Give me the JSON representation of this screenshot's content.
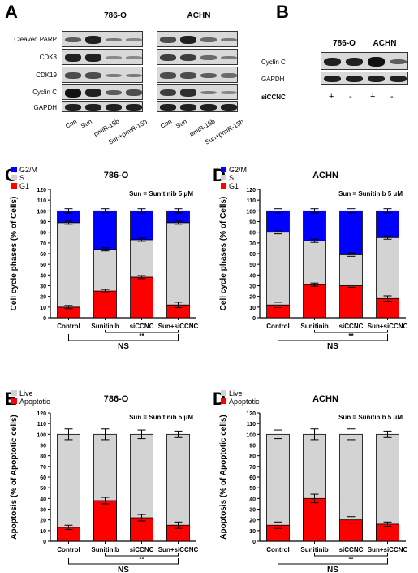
{
  "panelA": {
    "letter": "A",
    "groups": [
      "786-O",
      "ACHN"
    ],
    "rows": [
      "Cleaved PARP",
      "CDK8",
      "CDK19",
      "Cyclin C",
      "GAPDH"
    ],
    "lanes": [
      "Con",
      "Sun",
      "pmiR-15b",
      "Sun+pmiR-15b"
    ]
  },
  "panelB": {
    "letter": "B",
    "groups": [
      "786-O",
      "ACHN"
    ],
    "rows": [
      "Cyclin C",
      "GAPDH"
    ],
    "treatment_label": "siCCNC",
    "signs": [
      "+",
      "-",
      "+",
      "-"
    ]
  },
  "chart_data": [
    {
      "letter": "C",
      "type": "bar",
      "stacked": true,
      "title": "786-O",
      "annotation": "Sun = Sunitinib 5 μM",
      "ylabel": "Cell cycle phases (% of Cells)",
      "ylim": [
        0,
        120
      ],
      "yticks": [
        0,
        10,
        20,
        30,
        40,
        50,
        60,
        70,
        80,
        90,
        100,
        110,
        120
      ],
      "categories": [
        "Control",
        "Sunitinib",
        "siCCNC",
        "Sun+siCCNC"
      ],
      "legend": "top-left",
      "series": [
        {
          "name": "G1",
          "color": "#ff0000",
          "values": [
            10,
            25,
            38,
            12
          ],
          "errors": [
            1.5,
            1.5,
            1.5,
            2.5
          ]
        },
        {
          "name": "S",
          "color": "#d3d3d3",
          "values": [
            79,
            39,
            35,
            77
          ],
          "errors": [
            1.5,
            1.5,
            1.5,
            1.5
          ]
        },
        {
          "name": "G2/M",
          "color": "#0000ff",
          "values": [
            11,
            36,
            27,
            11
          ],
          "errors": [
            2,
            2,
            2,
            2
          ]
        }
      ],
      "brackets": [
        {
          "from": 1,
          "to": 3,
          "label": "**"
        },
        {
          "from": 0,
          "to": 3,
          "label": "NS"
        }
      ]
    },
    {
      "letter": "D",
      "type": "bar",
      "stacked": true,
      "title": "ACHN",
      "annotation": "Sun = Sunitinib 5 μM",
      "ylabel": "Cell cycle phases (% of Cells)",
      "ylim": [
        0,
        120
      ],
      "yticks": [
        0,
        10,
        20,
        30,
        40,
        50,
        60,
        70,
        80,
        90,
        100,
        110,
        120
      ],
      "categories": [
        "Control",
        "Sunitinib",
        "siCCNC",
        "Sun+siCCNC"
      ],
      "legend": "top-left",
      "series": [
        {
          "name": "G1",
          "color": "#ff0000",
          "values": [
            12,
            31,
            30,
            18
          ],
          "errors": [
            2.5,
            1.5,
            1.5,
            2.5
          ]
        },
        {
          "name": "S",
          "color": "#d3d3d3",
          "values": [
            68,
            41,
            29,
            57
          ],
          "errors": [
            1.5,
            1.5,
            1.5,
            1.5
          ]
        },
        {
          "name": "G2/M",
          "color": "#0000ff",
          "values": [
            20,
            28,
            41,
            25
          ],
          "errors": [
            2,
            2,
            2,
            2
          ]
        }
      ],
      "brackets": [
        {
          "from": 1,
          "to": 3,
          "label": "**"
        },
        {
          "from": 0,
          "to": 3,
          "label": "NS"
        }
      ]
    },
    {
      "letter": "E",
      "type": "bar",
      "stacked": false,
      "title": "786-O",
      "annotation": "Sun = Sunitinib 5 μM",
      "ylabel": "Apoptosis (% of Apoptotic cells)",
      "ylim": [
        0,
        120
      ],
      "yticks": [
        0,
        10,
        20,
        30,
        40,
        50,
        60,
        70,
        80,
        90,
        100,
        110,
        120
      ],
      "categories": [
        "Control",
        "Sunitinib",
        "siCCNC",
        "Sun+siCCNC"
      ],
      "legend": "top-left",
      "series": [
        {
          "name": "Live",
          "color": "#d3d3d3",
          "values": [
            100,
            100,
            100,
            100
          ],
          "errors": [
            5,
            5,
            4,
            3
          ]
        },
        {
          "name": "Apoptotic",
          "color": "#ff0000",
          "values": [
            13,
            38,
            22,
            15
          ],
          "errors": [
            2,
            3,
            3,
            3
          ]
        }
      ],
      "brackets": [
        {
          "from": 1,
          "to": 3,
          "label": "**"
        },
        {
          "from": 0,
          "to": 3,
          "label": "NS"
        }
      ]
    },
    {
      "letter": "D",
      "type": "bar",
      "stacked": false,
      "title": "ACHN",
      "annotation": "Sun = Sunitinib 5 μM",
      "ylabel": "Apoptosis (% of Apoptotic cells)",
      "ylim": [
        0,
        120
      ],
      "yticks": [
        0,
        10,
        20,
        30,
        40,
        50,
        60,
        70,
        80,
        90,
        100,
        110,
        120
      ],
      "categories": [
        "Control",
        "Sunitinib",
        "siCCNC",
        "Sun+siCCNC"
      ],
      "legend": "top-left",
      "series": [
        {
          "name": "Live",
          "color": "#d3d3d3",
          "values": [
            100,
            100,
            100,
            100
          ],
          "errors": [
            4,
            5,
            5,
            3
          ]
        },
        {
          "name": "Apoptotic",
          "color": "#ff0000",
          "values": [
            15,
            40,
            20,
            16
          ],
          "errors": [
            3,
            4,
            3,
            2
          ]
        }
      ],
      "brackets": [
        {
          "from": 1,
          "to": 3,
          "label": "**"
        },
        {
          "from": 0,
          "to": 3,
          "label": "NS"
        }
      ]
    }
  ]
}
